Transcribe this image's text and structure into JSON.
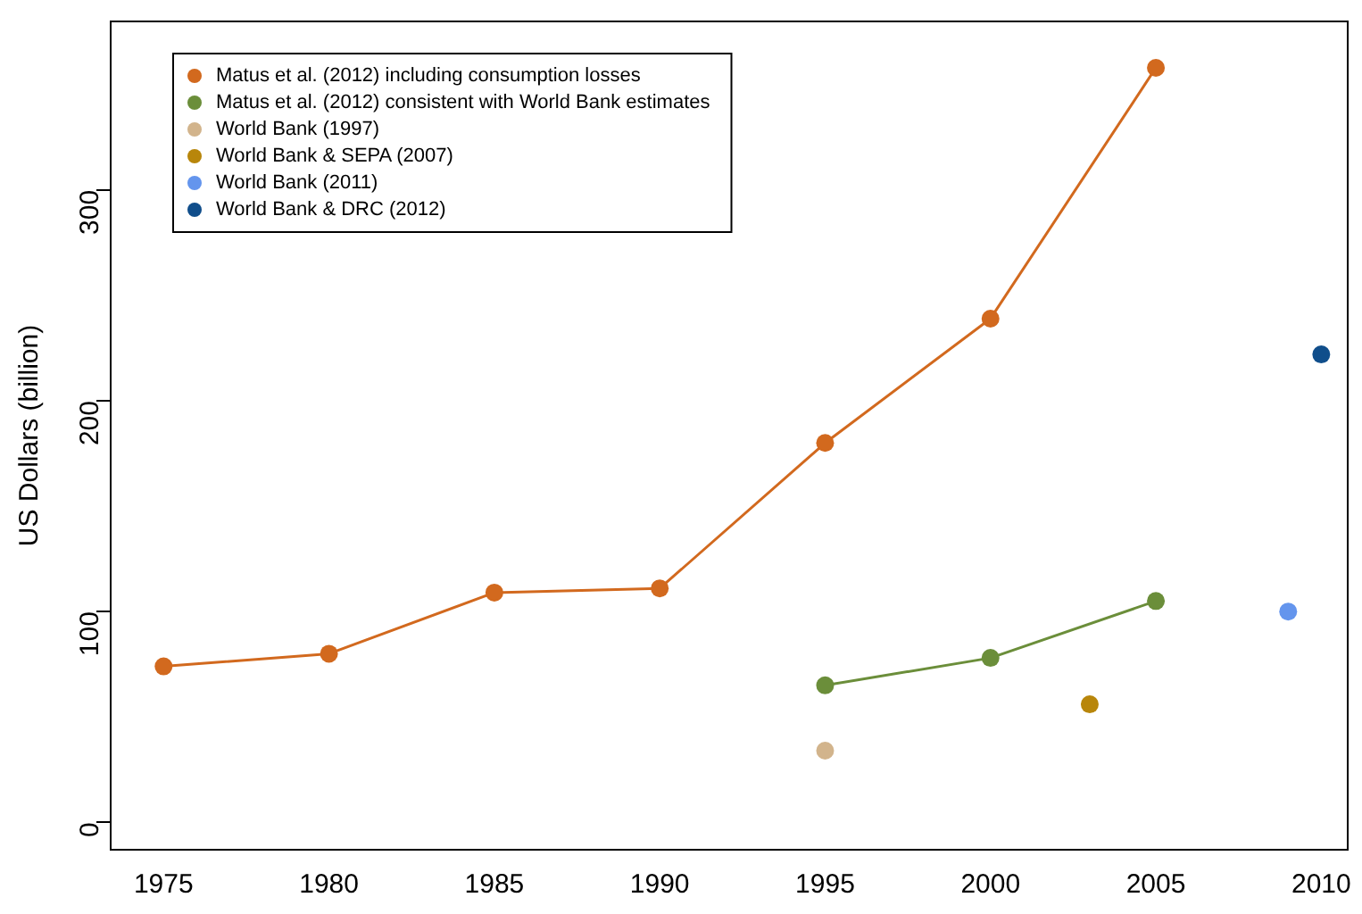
{
  "chart_data": {
    "type": "line",
    "ylabel": "US Dollars (billion)",
    "xlim": [
      1973.4,
      2010.8
    ],
    "ylim": [
      -13,
      380
    ],
    "xticks": [
      1975,
      1980,
      1985,
      1990,
      1995,
      2000,
      2005,
      2010
    ],
    "yticks": [
      0,
      100,
      200,
      300
    ],
    "grid": false,
    "legend": "top left",
    "marker": "circle",
    "line_style": "solid",
    "series": [
      {
        "name": "Matus et al. (2012) including consumption losses",
        "type": "line",
        "color": "#d2691e",
        "x": [
          1975,
          1980,
          1985,
          1990,
          1995,
          2000,
          2005
        ],
        "values": [
          74,
          80,
          109,
          111,
          180,
          239,
          358
        ]
      },
      {
        "name": "Matus et al. (2012) consistent with World Bank estimates",
        "type": "line",
        "color": "#6b8e3a",
        "x": [
          1995,
          2000,
          2005
        ],
        "values": [
          65,
          78,
          105
        ]
      },
      {
        "name": "World Bank (1997)",
        "type": "scatter",
        "color": "#d2b48c",
        "x": [
          1995
        ],
        "values": [
          34
        ]
      },
      {
        "name": "World Bank & SEPA (2007)",
        "type": "scatter",
        "color": "#b8860b",
        "x": [
          2003
        ],
        "values": [
          56
        ]
      },
      {
        "name": "World Bank (2011)",
        "type": "scatter",
        "color": "#6495ed",
        "x": [
          2009
        ],
        "values": [
          100
        ]
      },
      {
        "name": "World Bank & DRC (2012)",
        "type": "scatter",
        "color": "#104e8b",
        "x": [
          2010
        ],
        "values": [
          222
        ]
      }
    ]
  }
}
